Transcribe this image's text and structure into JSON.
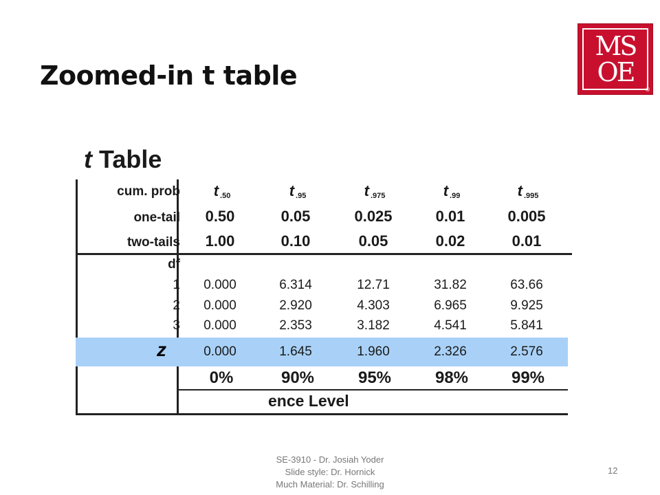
{
  "slide": {
    "title": "Zoomed-in t table",
    "page_number": "12"
  },
  "logo": {
    "row1": "MS",
    "row2": "OE",
    "reg": "®",
    "colors": {
      "background": "#c8102e",
      "letters": "#ffffff"
    }
  },
  "table": {
    "heading_t": "t",
    "heading_rest": "Table",
    "column_heads": [
      {
        "t": "t",
        "sub": ".50"
      },
      {
        "t": "t",
        "sub": ".95"
      },
      {
        "t": "t",
        "sub": ".975"
      },
      {
        "t": "t",
        "sub": ".99"
      },
      {
        "t": "t",
        "sub": ".995"
      }
    ],
    "row_labels": {
      "cum_prob": "cum. prob",
      "one_tail": "one-tail",
      "two_tails": "two-tails",
      "df": "df",
      "z": "z"
    },
    "one_tail": [
      "0.50",
      "0.05",
      "0.025",
      "0.01",
      "0.005"
    ],
    "two_tails": [
      "1.00",
      "0.10",
      "0.05",
      "0.02",
      "0.01"
    ],
    "df_rows": [
      {
        "df": "1",
        "values": [
          "0.000",
          "6.314",
          "12.71",
          "31.82",
          "63.66"
        ]
      },
      {
        "df": "2",
        "values": [
          "0.000",
          "2.920",
          "4.303",
          "6.965",
          "9.925"
        ]
      },
      {
        "df": "3",
        "values": [
          "0.000",
          "2.353",
          "3.182",
          "4.541",
          "5.841"
        ]
      }
    ],
    "z_row": [
      "0.000",
      "1.645",
      "1.960",
      "2.326",
      "2.576"
    ],
    "confidence": [
      "0%",
      "90%",
      "95%",
      "98%",
      "99%"
    ],
    "confidence_caption": "ence Level",
    "colors": {
      "z_highlight": "#a9d1f7"
    }
  },
  "footer": {
    "line1": "SE-3910  - Dr. Josiah Yoder",
    "line2": "Slide style: Dr. Hornick",
    "line3": "Much Material: Dr. Schilling"
  }
}
